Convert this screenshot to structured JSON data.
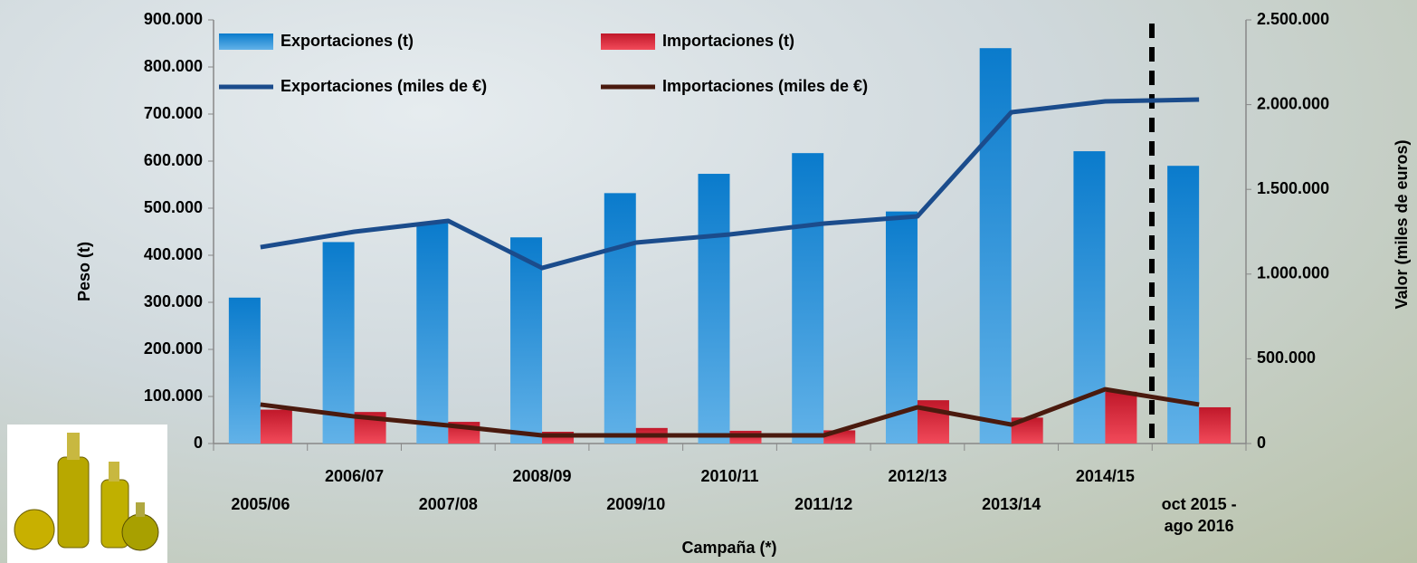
{
  "chart_data": {
    "type": "bar",
    "x_label": "Campaña (*)",
    "y_label": "Peso (t)",
    "y2_label": "Valor (miles de euros)",
    "categories": [
      "2005/06",
      "2006/07",
      "2007/08",
      "2008/09",
      "2009/10",
      "2010/11",
      "2011/12",
      "2012/13",
      "2013/14",
      "2014/15",
      "oct 2015 -\nago 2016"
    ],
    "series": [
      {
        "name": "Exportaciones (t)",
        "type": "bar",
        "color": "#1283d2",
        "values": [
          310000,
          428000,
          470000,
          438000,
          532000,
          573000,
          617000,
          493000,
          840000,
          621000,
          590000
        ]
      },
      {
        "name": "Importaciones (t)",
        "type": "bar",
        "color": "#d21c30",
        "values": [
          72000,
          67000,
          46000,
          25000,
          33000,
          27000,
          28000,
          92000,
          55000,
          110000,
          77000
        ]
      },
      {
        "name": "Exportaciones (miles de €)",
        "type": "line",
        "axis": "y2",
        "color": "#1b4c8c",
        "values": [
          1159000,
          1250000,
          1314000,
          1036000,
          1186000,
          1234000,
          1298000,
          1341000,
          1955000,
          2019000,
          2030000
        ]
      },
      {
        "name": "Importaciones (miles de €)",
        "type": "line",
        "axis": "y2",
        "color": "#4a1a0e",
        "values": [
          230000,
          160000,
          107000,
          48000,
          48000,
          48000,
          48000,
          214000,
          112000,
          320000,
          230000
        ]
      }
    ],
    "ylim": [
      0,
      900000
    ],
    "yticks": [
      0,
      {
        "value": 100000,
        "label": "100.000"
      },
      {
        "value": 200000,
        "label": "200.000"
      },
      {
        "value": 300000,
        "label": "300.000"
      },
      {
        "value": 400000,
        "label": "400.000"
      },
      {
        "value": 500000,
        "label": "500.000"
      },
      {
        "value": 600000,
        "label": "600.000"
      },
      {
        "value": 700000,
        "label": "700.000"
      },
      {
        "value": 800000,
        "label": "800.000"
      },
      {
        "value": 900000,
        "label": "900.000"
      }
    ],
    "y2lim": [
      0,
      2500000
    ],
    "y2ticks": [
      0,
      {
        "value": 500000,
        "label": "500.000"
      },
      {
        "value": 1000000,
        "label": "1.000.000"
      },
      {
        "value": 1500000,
        "label": "1.500.000"
      },
      {
        "value": 2000000,
        "label": "2.000.000"
      },
      {
        "value": 2500000,
        "label": "2.500.000"
      }
    ],
    "legend": "top-left",
    "grid": false
  }
}
